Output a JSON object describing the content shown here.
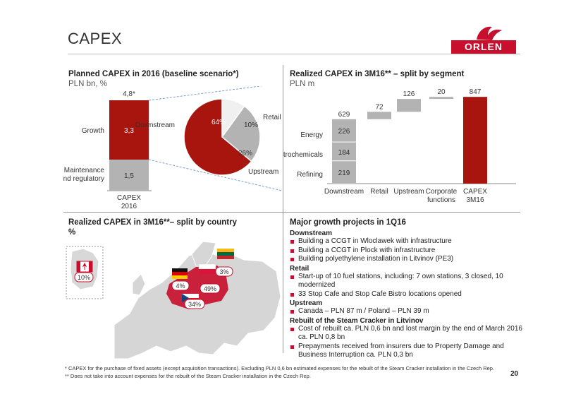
{
  "page": {
    "title": "CAPEX",
    "logo_text": "ORLEN",
    "page_number": "20",
    "colors": {
      "accent": "#c8102e",
      "dark_red": "#a8140e",
      "grey": "#b3b3b3"
    }
  },
  "planned": {
    "title": "Planned CAPEX in 2016 (baseline scenario*)",
    "subtitle": "PLN bn, %",
    "total_label": "4,8*",
    "growth_label": "Growth",
    "maintenance_label_1": "Maintenance",
    "maintenance_label_2": "and regulatory",
    "x_label_1": "CAPEX",
    "x_label_2": "2016"
  },
  "realized_segment": {
    "title": "Realized CAPEX in 3M16** – split by segment",
    "subtitle": "PLN m"
  },
  "realized_country": {
    "title_line1": "Realized CAPEX in 3M16**– split by country",
    "title_line2": "%"
  },
  "chart_data": [
    {
      "type": "bar",
      "title": "Planned CAPEX in 2016 (baseline scenario*)",
      "categories": [
        "CAPEX 2016"
      ],
      "series": [
        {
          "name": "Maintenance and regulatory",
          "values": [
            1.5
          ],
          "label": "1,5"
        },
        {
          "name": "Growth",
          "values": [
            3.3
          ],
          "label": "3,3"
        }
      ],
      "total": "4,8*"
    },
    {
      "type": "pie",
      "slices": [
        {
          "name": "Downstream",
          "value": 64,
          "label": "64%"
        },
        {
          "name": "Retail",
          "value": 10,
          "label": "10%"
        },
        {
          "name": "Upstream",
          "value": 26,
          "label": "26%"
        }
      ]
    },
    {
      "type": "bar",
      "title": "Realized CAPEX in 3M16** – split by segment",
      "categories": [
        "Downstream",
        "Retail",
        "Upstream",
        "Corporate functions",
        "CAPEX 3M16"
      ],
      "downstream_stack": [
        {
          "name": "Refining",
          "value": 219
        },
        {
          "name": "Petrochemicals",
          "value": 184
        },
        {
          "name": "Energy",
          "value": 226
        }
      ],
      "downstream_total": 629,
      "increments": [
        {
          "name": "Retail",
          "value": 72
        },
        {
          "name": "Upstream",
          "value": 126
        },
        {
          "name": "Corporate functions",
          "value": 20
        }
      ],
      "total": 847
    },
    {
      "type": "pie",
      "title": "Realized CAPEX in 3M16**– split by country",
      "slices": [
        {
          "name": "Canada",
          "value": 10,
          "label": "10%"
        },
        {
          "name": "Germany",
          "value": 4,
          "label": "4%"
        },
        {
          "name": "Poland",
          "value": 49,
          "label": "49%"
        },
        {
          "name": "Lithuania",
          "value": 3,
          "label": "3%"
        },
        {
          "name": "Czech Republic",
          "value": 34,
          "label": "34%"
        }
      ]
    }
  ],
  "projects": {
    "title": "Major growth projects in 1Q16",
    "groups": [
      {
        "name": "Downstream",
        "items": [
          "Building a CCGT in Wloclawek with infrastructure",
          "Building a CCGT in Plock with infrastructure",
          "Building polyethylene installation in Litvinov (PE3)"
        ]
      },
      {
        "name": "Retail",
        "items": [
          "Start-up of 10 fuel stations, including: 7 own stations, 3 closed, 10 modernized",
          "33 Stop Cafe and Stop Cafe Bistro locations opened"
        ]
      },
      {
        "name": "Upstream",
        "items": [
          "Canada – PLN 87 m / Poland – PLN 39 m"
        ]
      },
      {
        "name": "Rebuilt of the Steam Cracker in Litvinov",
        "items": [
          "Cost of rebuilt ca. PLN 0,6 bn and lost margin by the end of March 2016 ca. PLN 0,8 bn",
          "Prepayments received from insurers due to Property Damage and Business Interruption ca. PLN 0,3 bn"
        ]
      }
    ]
  },
  "footnotes": {
    "line1": "*  CAPEX for the purchase of fixed assets (except acquisition transactions). Excluding PLN 0,6 bn estimated expenses for the rebuilt of the Steam Cracker installation in the Czech Rep.",
    "line2": "** Does not take into account expenses for the rebuilt of the Steam Cracker installation in the Czech Rep."
  }
}
